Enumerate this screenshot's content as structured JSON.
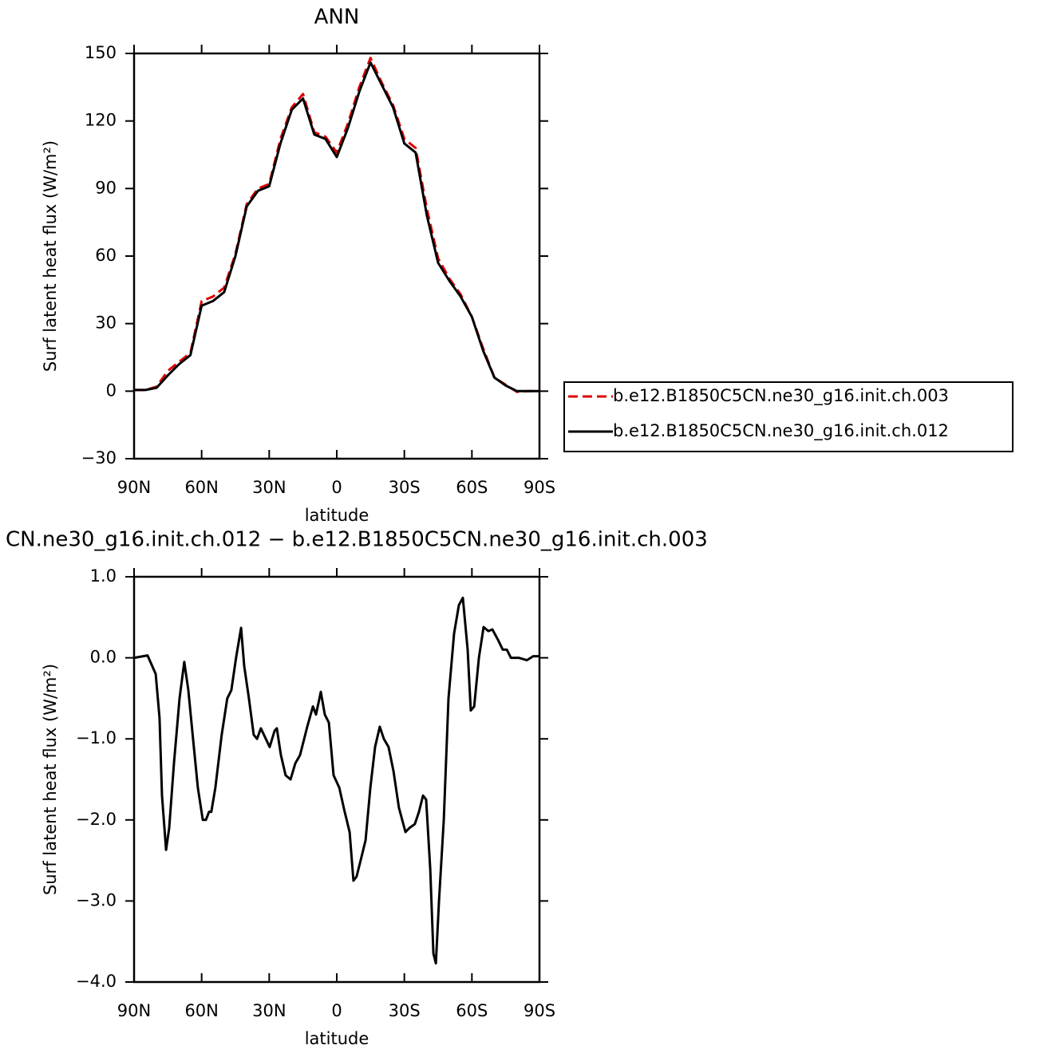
{
  "chart_data": [
    {
      "type": "line",
      "title": "ANN",
      "xlabel": "latitude",
      "ylabel": "Surf latent heat flux (W/m²)",
      "x": [
        90,
        85,
        80,
        75,
        70,
        65,
        60,
        55,
        50,
        45,
        40,
        35,
        30,
        25,
        20,
        15,
        10,
        5,
        0,
        -5,
        -10,
        -15,
        -20,
        -25,
        -30,
        -35,
        -40,
        -45,
        -50,
        -55,
        -60,
        -65,
        -70,
        -75,
        -80,
        -85,
        -90
      ],
      "series": [
        {
          "name": "b.e12.B1850C5CN.ne30_g16.init.ch.003",
          "color": "#e00000",
          "dash": "dashed",
          "values": [
            0.5,
            0.5,
            2,
            9,
            13,
            17,
            40,
            42,
            46,
            61,
            83,
            90,
            92,
            112,
            126,
            132,
            115,
            113,
            106,
            119,
            135,
            148,
            137,
            127,
            112,
            108,
            81,
            59,
            50,
            43,
            33,
            19,
            6,
            2.8,
            -0.3,
            0,
            0
          ]
        },
        {
          "name": "b.e12.B1850C5CN.ne30_g16.init.ch.012",
          "color": "#000000",
          "dash": "solid",
          "values": [
            0.5,
            0.5,
            1.5,
            7,
            12,
            16,
            38,
            40,
            44,
            60,
            82,
            89,
            91,
            110,
            125,
            130,
            114,
            112,
            104,
            117,
            133,
            146,
            136,
            126,
            110,
            106,
            78,
            57,
            49,
            42,
            33,
            18,
            6,
            2.5,
            0,
            0,
            0
          ]
        }
      ],
      "xlim": [
        90,
        -90
      ],
      "xticks": [
        {
          "value": 90,
          "label": "90N"
        },
        {
          "value": 60,
          "label": "60N"
        },
        {
          "value": 30,
          "label": "30N"
        },
        0,
        {
          "value": -30,
          "label": "30S"
        },
        {
          "value": -60,
          "label": "60S"
        },
        {
          "value": -90,
          "label": "90S"
        }
      ],
      "ylim": [
        -30,
        150
      ],
      "yticks": [
        {
          "value": -30,
          "label": "−30"
        },
        0,
        30,
        60,
        90,
        120,
        150
      ],
      "legend": "right"
    },
    {
      "type": "line",
      "title": "CN.ne30_g16.init.ch.012 − b.e12.B1850C5CN.ne30_g16.init.ch.003",
      "xlabel": "latitude",
      "ylabel": "Surf latent heat flux (W/m²)",
      "x": [
        90,
        84.0,
        80.4,
        78.7,
        77.6,
        75.8,
        74.4,
        72.3,
        69.8,
        67.7,
        65.9,
        63.8,
        61.7,
        59.5,
        58.1,
        56.7,
        55.7,
        53.9,
        51.1,
        48.6,
        46.8,
        44.7,
        42.5,
        41.1,
        39.0,
        36.9,
        35.4,
        33.7,
        31.5,
        29.8,
        27.6,
        26.6,
        24.8,
        22.7,
        20.5,
        18.4,
        16.3,
        13.1,
        10.6,
        9.2,
        7.1,
        5.3,
        3.5,
        1.4,
        -1.1,
        -3.5,
        -5.7,
        -7.4,
        -8.8,
        -10.6,
        -12.8,
        -14.9,
        -17.0,
        -19.1,
        -20.9,
        -23.0,
        -25.2,
        -27.6,
        -30.5,
        -32.2,
        -34.7,
        -36.5,
        -38.3,
        -39.7,
        -41.5,
        -42.9,
        -44.0,
        -45.4,
        -47.5,
        -49.6,
        -52.1,
        -54.2,
        -56.0,
        -58.1,
        -59.5,
        -61.0,
        -63.1,
        -65.2,
        -67.3,
        -69.1,
        -71.6,
        -73.7,
        -75.5,
        -77.3,
        -80.8,
        -84.4,
        -87.2,
        -90
      ],
      "series": [
        {
          "color": "#000000",
          "dash": "solid",
          "values": [
            0,
            0.03,
            -0.2,
            -0.74,
            -1.7,
            -2.37,
            -2.1,
            -1.3,
            -0.5,
            -0.05,
            -0.4,
            -1.0,
            -1.6,
            -2.0,
            -2.0,
            -1.9,
            -1.9,
            -1.6,
            -0.95,
            -0.5,
            -0.4,
            0.0,
            0.37,
            -0.1,
            -0.5,
            -0.95,
            -1.0,
            -0.87,
            -1.0,
            -1.1,
            -0.9,
            -0.87,
            -1.2,
            -1.45,
            -1.5,
            -1.3,
            -1.2,
            -0.85,
            -0.6,
            -0.7,
            -0.42,
            -0.7,
            -0.8,
            -1.45,
            -1.6,
            -1.9,
            -2.15,
            -2.75,
            -2.7,
            -2.5,
            -2.25,
            -1.6,
            -1.1,
            -0.85,
            -1.0,
            -1.1,
            -1.4,
            -1.85,
            -2.15,
            -2.1,
            -2.05,
            -1.9,
            -1.7,
            -1.75,
            -2.6,
            -3.65,
            -3.77,
            -3.0,
            -2.0,
            -0.5,
            0.3,
            0.65,
            0.74,
            0.1,
            -0.65,
            -0.6,
            0.0,
            0.38,
            0.33,
            0.35,
            0.22,
            0.1,
            0.1,
            0.0,
            0.0,
            -0.03,
            0.02,
            0.02
          ]
        }
      ],
      "xlim": [
        90,
        -90
      ],
      "xticks": [
        {
          "value": 90,
          "label": "90N"
        },
        {
          "value": 60,
          "label": "60N"
        },
        {
          "value": 30,
          "label": "30N"
        },
        0,
        {
          "value": -30,
          "label": "30S"
        },
        {
          "value": -60,
          "label": "60S"
        },
        {
          "value": -90,
          "label": "90S"
        }
      ],
      "ylim": [
        -4,
        1
      ],
      "yticks": [
        {
          "value": -4,
          "label": "−4.0"
        },
        {
          "value": -3,
          "label": "−3.0"
        },
        {
          "value": -2,
          "label": "−2.0"
        },
        {
          "value": -1,
          "label": "−1.0"
        },
        {
          "value": 0,
          "label": "0.0"
        },
        {
          "value": 1,
          "label": "1.0"
        }
      ]
    }
  ]
}
